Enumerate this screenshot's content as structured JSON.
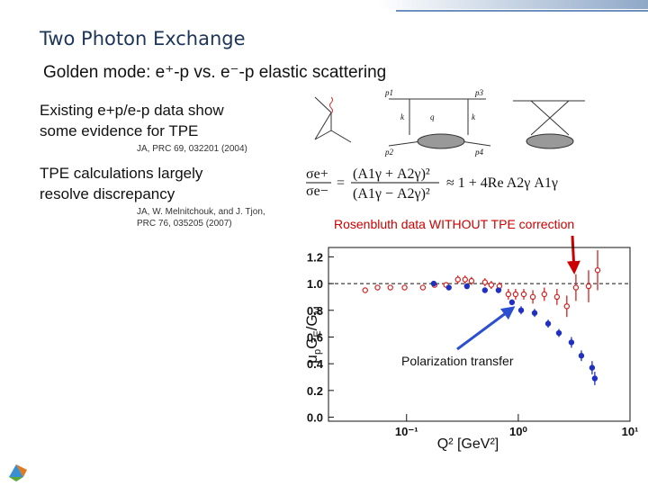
{
  "header": {
    "title": "Two Photon Exchange",
    "subtitle": "Golden mode:  e⁺-p vs. e⁻-p elastic scattering"
  },
  "points": [
    {
      "lines": [
        "Existing e+p/e-p data show",
        "some evidence for TPE"
      ],
      "citation": [
        "JA, PRC 69, 032201 (2004)"
      ]
    },
    {
      "lines": [
        "TPE calculations largely",
        "resolve discrepancy"
      ],
      "citation": [
        "JA, W. Melnitchouk, and J. Tjon,",
        "PRC 76, 035205 (2007)"
      ]
    }
  ],
  "diagram_labels": [
    "p1",
    "p3",
    "k",
    "q",
    "k",
    "p2",
    "p4"
  ],
  "formula": {
    "lhs_num": "σe+",
    "lhs_den": "σe−",
    "eq": "=",
    "rhs_num": "(A1γ + A2γ)²",
    "rhs_den": "(A1γ − A2γ)²",
    "approx": "≈ 1 + 4Re A2γ A1γ"
  },
  "annotations": {
    "rosenbluth": "Rosenbluth data WITHOUT TPE correction",
    "polarization": "Polarization transfer"
  },
  "chart_data": {
    "type": "scatter",
    "x_label": "Q² [GeV²]",
    "y_label_parts": [
      {
        "text": "μ"
      },
      {
        "text": "p",
        "sub": true
      },
      {
        "text": "G"
      },
      {
        "text": "E",
        "sub": true
      },
      {
        "text": "/G"
      },
      {
        "text": "M",
        "sub": true
      }
    ],
    "xlog": true,
    "xlim": [
      0.02,
      10
    ],
    "xticks": [
      {
        "value": 0.1,
        "label": "10⁻¹"
      },
      {
        "value": 1,
        "label": "10⁰"
      },
      {
        "value": 10,
        "label": "10¹"
      }
    ],
    "ylim": [
      -0.03,
      1.27
    ],
    "yticks": [
      {
        "value": 0,
        "label": "0.0"
      },
      0.2,
      0.4,
      0.6,
      0.8,
      {
        "value": 1,
        "label": "1.0"
      },
      1.2
    ],
    "reference_line": 1,
    "series": [
      {
        "color": "#d42020",
        "marker": "open",
        "x": [
          0.0426,
          0.055,
          0.0716,
          0.096,
          0.14,
          0.178,
          0.226,
          0.288,
          0.334,
          0.381,
          0.503,
          0.573,
          0.677,
          0.815,
          0.946,
          1.12,
          1.35,
          1.71,
          2.22,
          2.72,
          3.28,
          4.26,
          5.13
        ],
        "values": [
          0.95,
          0.97,
          0.97,
          0.97,
          0.97,
          0.99,
          0.99,
          1.03,
          1.03,
          1.02,
          1.01,
          0.99,
          0.98,
          0.92,
          0.92,
          0.92,
          0.9,
          0.92,
          0.9,
          0.83,
          0.97,
          0.98,
          1.1
        ],
        "errors": [
          0.02,
          0.02,
          0.02,
          0.02,
          0.02,
          0.02,
          0.02,
          0.03,
          0.03,
          0.03,
          0.03,
          0.03,
          0.03,
          0.04,
          0.04,
          0.04,
          0.05,
          0.05,
          0.06,
          0.08,
          0.1,
          0.12,
          0.15
        ]
      },
      {
        "color": "#2030c0",
        "marker": "filled",
        "x": [
          0.175,
          0.239,
          0.347,
          0.503,
          0.665,
          0.878,
          1.06,
          1.4,
          1.85,
          2.31,
          2.99,
          3.67,
          4.58,
          4.84
        ],
        "values": [
          1.0,
          0.97,
          0.98,
          0.95,
          0.95,
          0.86,
          0.8,
          0.78,
          0.7,
          0.63,
          0.56,
          0.46,
          0.37,
          0.29
        ],
        "errors": [
          0.02,
          0.02,
          0.02,
          0.02,
          0.02,
          0.02,
          0.03,
          0.03,
          0.03,
          0.03,
          0.04,
          0.04,
          0.05,
          0.05
        ]
      }
    ]
  }
}
